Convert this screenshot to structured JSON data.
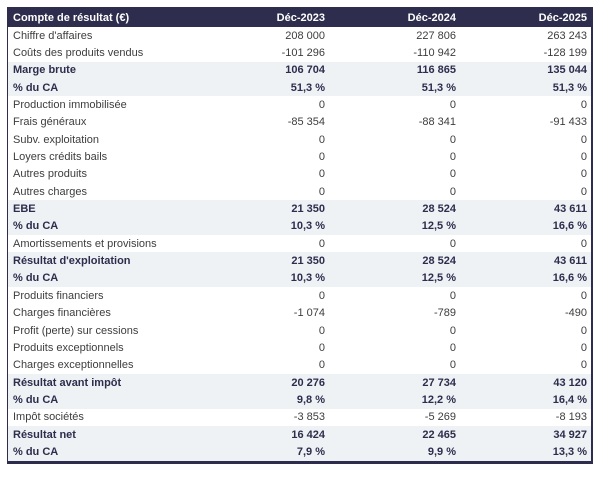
{
  "title": "Compte de résultat (€)",
  "chart_data": {
    "type": "table",
    "corner_label": "Compte de résultat (€)",
    "columns": [
      "Déc-2023",
      "Déc-2024",
      "Déc-2025"
    ],
    "rows": [
      {
        "label": "Chiffre d'affaires",
        "values": [
          "208 000",
          "227 806",
          "263 243"
        ],
        "emphasis": false
      },
      {
        "label": "Coûts des produits vendus",
        "values": [
          "-101 296",
          "-110 942",
          "-128 199"
        ],
        "emphasis": false
      },
      {
        "label": "Marge brute",
        "values": [
          "106 704",
          "116 865",
          "135 044"
        ],
        "emphasis": true
      },
      {
        "label": "% du CA",
        "values": [
          "51,3 %",
          "51,3 %",
          "51,3 %"
        ],
        "emphasis": true
      },
      {
        "label": "Production immobilisée",
        "values": [
          "0",
          "0",
          "0"
        ],
        "emphasis": false
      },
      {
        "label": "Frais généraux",
        "values": [
          "-85 354",
          "-88 341",
          "-91 433"
        ],
        "emphasis": false
      },
      {
        "label": "Subv. exploitation",
        "values": [
          "0",
          "0",
          "0"
        ],
        "emphasis": false
      },
      {
        "label": "Loyers crédits bails",
        "values": [
          "0",
          "0",
          "0"
        ],
        "emphasis": false
      },
      {
        "label": "Autres produits",
        "values": [
          "0",
          "0",
          "0"
        ],
        "emphasis": false
      },
      {
        "label": "Autres charges",
        "values": [
          "0",
          "0",
          "0"
        ],
        "emphasis": false
      },
      {
        "label": "EBE",
        "values": [
          "21 350",
          "28 524",
          "43 611"
        ],
        "emphasis": true
      },
      {
        "label": "% du CA",
        "values": [
          "10,3 %",
          "12,5 %",
          "16,6 %"
        ],
        "emphasis": true
      },
      {
        "label": "Amortissements et provisions",
        "values": [
          "0",
          "0",
          "0"
        ],
        "emphasis": false
      },
      {
        "label": "Résultat d'exploitation",
        "values": [
          "21 350",
          "28 524",
          "43 611"
        ],
        "emphasis": true
      },
      {
        "label": "% du CA",
        "values": [
          "10,3 %",
          "12,5 %",
          "16,6 %"
        ],
        "emphasis": true
      },
      {
        "label": "Produits financiers",
        "values": [
          "0",
          "0",
          "0"
        ],
        "emphasis": false
      },
      {
        "label": "Charges financières",
        "values": [
          "-1 074",
          "-789",
          "-490"
        ],
        "emphasis": false
      },
      {
        "label": "Profit (perte) sur cessions",
        "values": [
          "0",
          "0",
          "0"
        ],
        "emphasis": false
      },
      {
        "label": "Produits exceptionnels",
        "values": [
          "0",
          "0",
          "0"
        ],
        "emphasis": false
      },
      {
        "label": "Charges exceptionnelles",
        "values": [
          "0",
          "0",
          "0"
        ],
        "emphasis": false
      },
      {
        "label": "Résultat avant impôt",
        "values": [
          "20 276",
          "27 734",
          "43 120"
        ],
        "emphasis": true
      },
      {
        "label": "% du CA",
        "values": [
          "9,8 %",
          "12,2 %",
          "16,4 %"
        ],
        "emphasis": true
      },
      {
        "label": "Impôt sociétés",
        "values": [
          "-3 853",
          "-5 269",
          "-8 193"
        ],
        "emphasis": false
      },
      {
        "label": "Résultat net",
        "values": [
          "16 424",
          "22 465",
          "34 927"
        ],
        "emphasis": true
      },
      {
        "label": "% du CA",
        "values": [
          "7,9 %",
          "9,9 %",
          "13,3 %"
        ],
        "emphasis": true
      }
    ]
  },
  "colors": {
    "header_bg": "#2e2d4d",
    "header_text": "#ffffff",
    "highlight_bg": "#eef2f4",
    "bold_text": "#2e2d4d",
    "text": "#3d3d3d",
    "border": "#2e2d4d"
  }
}
